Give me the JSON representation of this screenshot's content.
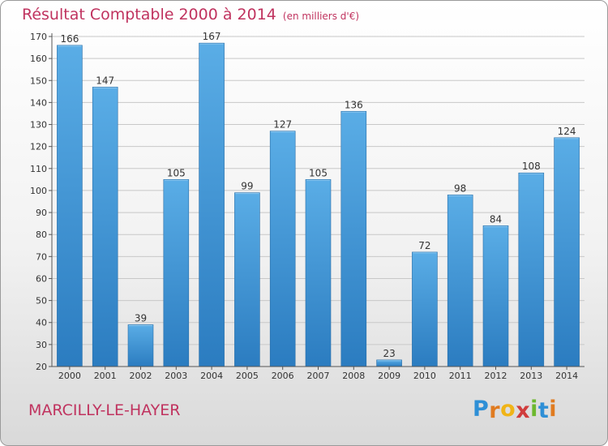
{
  "title": "Résultat Comptable 2000 à 2014",
  "subtitle": "(en milliers d'€)",
  "place": "MARCILLY-LE-HAYER",
  "logo": {
    "letters": [
      "P",
      "r",
      "o",
      "x",
      "i",
      "t",
      "i"
    ],
    "colors": [
      "#2e8fd6",
      "#e07b20",
      "#f0b417",
      "#d03c3c",
      "#6cb82e",
      "#2e8fd6",
      "#e07b20"
    ]
  },
  "colors": {
    "bar_light": "#5aade6",
    "bar_dark": "#2b7cc0",
    "accent": "#c0335f"
  },
  "chart_data": {
    "type": "bar",
    "categories": [
      "2000",
      "2001",
      "2002",
      "2003",
      "2004",
      "2005",
      "2006",
      "2007",
      "2008",
      "2009",
      "2010",
      "2011",
      "2012",
      "2013",
      "2014"
    ],
    "values": [
      166,
      147,
      39,
      105,
      167,
      99,
      127,
      105,
      136,
      23,
      72,
      98,
      84,
      108,
      124
    ],
    "ylim": [
      20,
      170
    ],
    "yticks": [
      20,
      30,
      40,
      50,
      60,
      70,
      80,
      90,
      100,
      110,
      120,
      130,
      140,
      150,
      160,
      170
    ],
    "grid": true,
    "xlabel": "",
    "ylabel": ""
  }
}
